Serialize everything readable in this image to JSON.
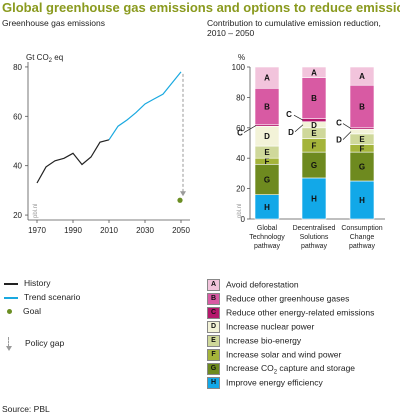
{
  "page_title": "Global greenhouse gas emissions and options to reduce emissions",
  "source": "Source: PBL",
  "colors": {
    "title": "#8a9a1e",
    "history": "#222222",
    "trend": "#1aa9e0",
    "goal": "#6b8e23",
    "policy_gap": "#9a9a9a",
    "A": "#f2c4dc",
    "B": "#d85aa3",
    "C": "#b5186c",
    "D": "#f3f3d8",
    "E": "#cfd89a",
    "F": "#a4b43a",
    "G": "#6e8a1f",
    "H": "#12a8e8"
  },
  "chart_data": [
    {
      "type": "line",
      "title": "Greenhouse gas emissions",
      "ylabel": "Gt CO2 eq",
      "ylim": [
        20,
        80
      ],
      "xlim": [
        1965,
        2055
      ],
      "yticks": [
        "20",
        "40",
        "60",
        "80"
      ],
      "xticks": [
        "1970",
        "1990",
        "2010",
        "2030",
        "2050"
      ],
      "watermark": "pbl.nl",
      "series": [
        {
          "name": "History",
          "points": [
            [
              1970,
              33
            ],
            [
              1975,
              39.5
            ],
            [
              1980,
              42
            ],
            [
              1985,
              43
            ],
            [
              1990,
              45
            ],
            [
              1995,
              40.5
            ],
            [
              2000,
              43.5
            ],
            [
              2005,
              49.5
            ],
            [
              2010,
              50.5
            ]
          ]
        },
        {
          "name": "Trend scenario",
          "points": [
            [
              2010,
              50.5
            ],
            [
              2015,
              56
            ],
            [
              2020,
              58.5
            ],
            [
              2025,
              61.5
            ],
            [
              2030,
              65
            ],
            [
              2035,
              67
            ],
            [
              2040,
              69
            ],
            [
              2045,
              73.5
            ],
            [
              2050,
              78
            ]
          ]
        },
        {
          "name": "Goal",
          "points": [
            [
              2050,
              26
            ]
          ]
        }
      ],
      "policy_gap": {
        "x": 2050,
        "from": 78,
        "to": 26
      }
    },
    {
      "type": "bar",
      "stacked": true,
      "title": "Contribution to cumulative emission reduction, 2010 – 2050",
      "ylabel": "%",
      "ylim": [
        0,
        100
      ],
      "yticks": [
        "0",
        "20",
        "40",
        "60",
        "80",
        "100"
      ],
      "watermark": "pbl.nl",
      "categories": [
        "Global Technology pathway",
        "Decentralised Solutions pathway",
        "Consumption Change pathway"
      ],
      "category_lines": [
        [
          "Global",
          "Technology",
          "pathway"
        ],
        [
          "Decentralised",
          "Solutions",
          "pathway"
        ],
        [
          "Consumption",
          "Change",
          "pathway"
        ]
      ],
      "series": [
        {
          "key": "H",
          "values": [
            16,
            27,
            25
          ]
        },
        {
          "key": "G",
          "values": [
            20,
            17,
            19
          ]
        },
        {
          "key": "F",
          "values": [
            4,
            9,
            5
          ]
        },
        {
          "key": "E",
          "values": [
            8,
            7,
            7
          ]
        },
        {
          "key": "D",
          "values": [
            13,
            4,
            3
          ]
        },
        {
          "key": "C",
          "values": [
            1,
            2,
            1
          ]
        },
        {
          "key": "B",
          "values": [
            24,
            27,
            28
          ]
        },
        {
          "key": "A",
          "values": [
            14,
            7,
            12
          ]
        }
      ],
      "callouts": [
        "C",
        "C",
        "D",
        "C",
        "D"
      ]
    }
  ],
  "legend_left": [
    {
      "label": "History"
    },
    {
      "label": "Trend scenario"
    },
    {
      "label": "Goal"
    },
    {
      "label": "Policy gap"
    }
  ],
  "legend_right": [
    {
      "key": "A",
      "pre": "Avoid deforestation",
      "sub": "",
      "post": ""
    },
    {
      "key": "B",
      "pre": "Reduce other greenhouse gases",
      "sub": "",
      "post": ""
    },
    {
      "key": "C",
      "pre": "Reduce other energy-related emissions",
      "sub": "",
      "post": ""
    },
    {
      "key": "D",
      "pre": "Increase nuclear power",
      "sub": "",
      "post": ""
    },
    {
      "key": "E",
      "pre": "Increase bio-energy",
      "sub": "",
      "post": ""
    },
    {
      "key": "F",
      "pre": "Increase solar and wind power",
      "sub": "",
      "post": ""
    },
    {
      "key": "G",
      "pre": "Increase CO",
      "sub": "2",
      "post": " capture and storage"
    },
    {
      "key": "H",
      "pre": "Improve energy efficiency",
      "sub": "",
      "post": ""
    }
  ]
}
